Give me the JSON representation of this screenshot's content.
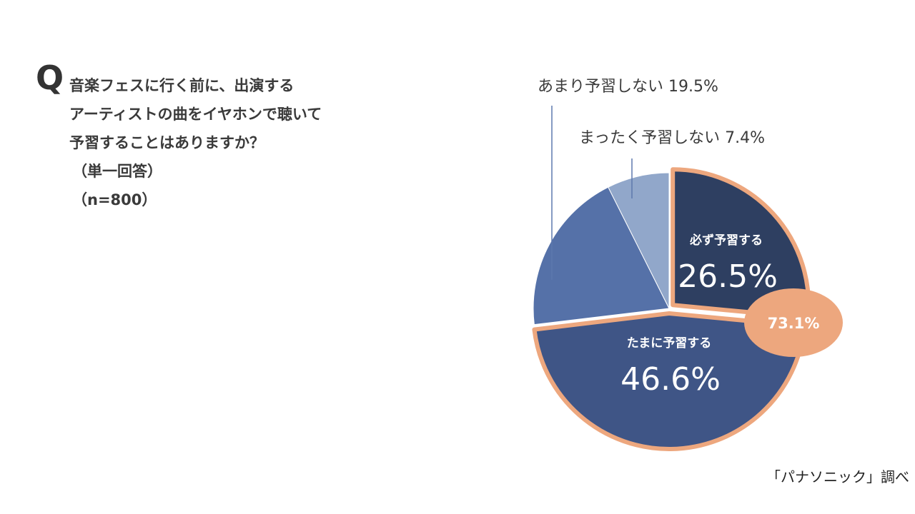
{
  "question": {
    "mark": "Q",
    "lines": [
      "音楽フェスに行く前に、出演する",
      "アーティストの曲をイヤホンで聴いて",
      "予習することはありますか？"
    ],
    "method": "（単一回答）",
    "sample": "（n=800）"
  },
  "credit": "「パナソニック」調べ",
  "chart_data": {
    "type": "pie",
    "title": "",
    "slices": [
      {
        "label": "必ず予習する",
        "value": 26.5,
        "display": "26.5%",
        "color": "#2e3f61",
        "highlighted": true
      },
      {
        "label": "たまに予習する",
        "value": 46.6,
        "display": "46.6%",
        "color": "#3f5586",
        "highlighted": true
      },
      {
        "label": "あまり予習しない",
        "value": 19.5,
        "display": "19.5%",
        "color": "#5571a8",
        "highlighted": false
      },
      {
        "label": "まったく予習しない",
        "value": 7.4,
        "display": "7.4%",
        "color": "#91a7ca",
        "highlighted": false
      }
    ],
    "outside_labels": {
      "rarely": "あまり予習しない 19.5%",
      "never": "まったく予習しない 7.4%"
    },
    "combined_badge": {
      "value": 73.1,
      "display": "73.1%",
      "color": "#eda77e"
    },
    "highlight_outline_color": "#eda77e"
  }
}
